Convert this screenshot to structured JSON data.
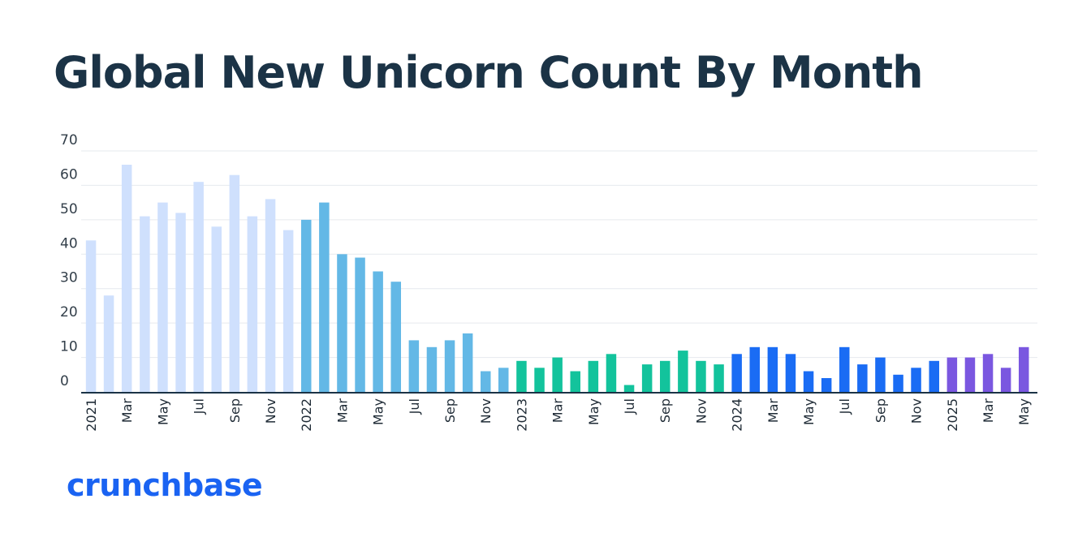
{
  "chart_data": {
    "type": "bar",
    "title": "Global New Unicorn Count By Month",
    "xlabel": "",
    "ylabel": "",
    "ylim": [
      0,
      70
    ],
    "yticks": [
      0,
      10,
      20,
      30,
      40,
      50,
      60,
      70
    ],
    "grid": true,
    "legend": "none",
    "x": [
      "2021-01",
      "2021-02",
      "2021-03",
      "2021-04",
      "2021-05",
      "2021-06",
      "2021-07",
      "2021-08",
      "2021-09",
      "2021-10",
      "2021-11",
      "2021-12",
      "2022-01",
      "2022-02",
      "2022-03",
      "2022-04",
      "2022-05",
      "2022-06",
      "2022-07",
      "2022-08",
      "2022-09",
      "2022-10",
      "2022-11",
      "2022-12",
      "2023-01",
      "2023-02",
      "2023-03",
      "2023-04",
      "2023-05",
      "2023-06",
      "2023-07",
      "2023-08",
      "2023-09",
      "2023-10",
      "2023-11",
      "2023-12",
      "2024-01",
      "2024-02",
      "2024-03",
      "2024-04",
      "2024-05",
      "2024-06",
      "2024-07",
      "2024-08",
      "2024-09",
      "2024-10",
      "2024-11",
      "2024-12",
      "2025-01",
      "2025-02",
      "2025-03",
      "2025-04",
      "2025-05"
    ],
    "tick_labels": [
      "2021",
      "",
      "Mar",
      "",
      "May",
      "",
      "Jul",
      "",
      "Sep",
      "",
      "Nov",
      "",
      "2022",
      "",
      "Mar",
      "",
      "May",
      "",
      "Jul",
      "",
      "Sep",
      "",
      "Nov",
      "",
      "2023",
      "",
      "Mar",
      "",
      "May",
      "",
      "Jul",
      "",
      "Sep",
      "",
      "Nov",
      "",
      "2024",
      "",
      "Mar",
      "",
      "May",
      "",
      "Jul",
      "",
      "Sep",
      "",
      "Nov",
      "",
      "2025",
      "",
      "Mar",
      "",
      "May"
    ],
    "values": [
      44,
      28,
      66,
      51,
      55,
      52,
      61,
      48,
      63,
      51,
      56,
      47,
      50,
      55,
      40,
      39,
      35,
      32,
      15,
      13,
      15,
      17,
      6,
      7,
      9,
      7,
      10,
      6,
      9,
      11,
      2,
      8,
      9,
      12,
      9,
      8,
      11,
      13,
      13,
      11,
      6,
      4,
      13,
      8,
      10,
      5,
      7,
      9,
      10,
      10,
      11,
      7,
      13
    ],
    "year_colors": {
      "2021": "#cfe0fd",
      "2022": "#63b8e6",
      "2023": "#13c39c",
      "2024": "#1a6cf4",
      "2025": "#7a57e0"
    }
  },
  "brand": {
    "logo_text": "crunchbase",
    "logo_color": "#1a63f2"
  }
}
